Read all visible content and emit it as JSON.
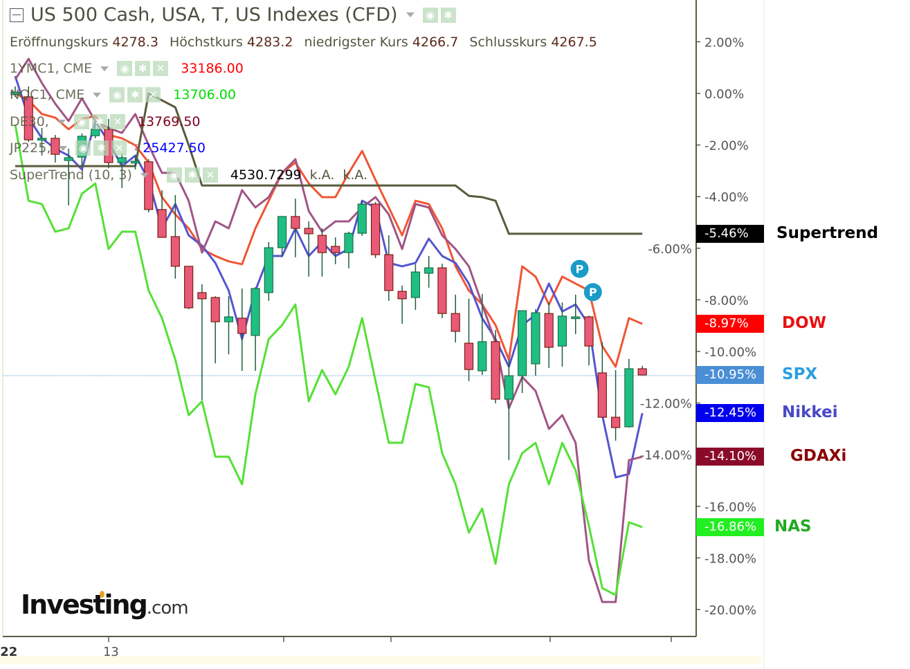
{
  "header": {
    "title": "US 500 Cash, USA, T, US Indexes (CFD)",
    "ohlc": [
      {
        "label": "Eröffnungskurs",
        "value": "4278.3"
      },
      {
        "label": "Höchstkurs",
        "value": "4283.2"
      },
      {
        "label": "niedrigster Kurs",
        "value": "4266.7"
      },
      {
        "label": "Schlusskurs",
        "value": "4267.5"
      }
    ]
  },
  "legend": [
    {
      "name": "1YMC1, CME",
      "value": "33186.00",
      "color": "#ff0000"
    },
    {
      "name": "NQC1, CME",
      "value": "13706.00",
      "color": "#00dd00"
    },
    {
      "name": "DE30,",
      "value": "13769.50",
      "color": "#800020"
    },
    {
      "name": "JP225,",
      "value": "25427.50",
      "color": "#0000ff"
    },
    {
      "name": "SuperTrend (10, 3)",
      "value": "4530.7299",
      "extra1": "k.A.",
      "extra2": "k.A.",
      "color": "#000000"
    }
  ],
  "icons": {
    "visibility": "eye-icon",
    "settings": "gear-icon",
    "remove": "close-icon",
    "alert": "alert-arrow-icon"
  },
  "logo": {
    "main": "Investing",
    "suffix": ".com"
  },
  "chart_data": {
    "type": "line",
    "title": "US 500 Cash, USA, T, US Indexes (CFD)",
    "xlabel": "",
    "ylabel": "",
    "ylim": [
      -21.5,
      3.5
    ],
    "y_ticks": [
      "2.00%",
      "0.00%",
      "-2.00%",
      "-4.00%",
      "-6.00%",
      "-8.00%",
      "-10.00%",
      "-12.00%",
      "-14.00%",
      "-16.00%",
      "-18.00%",
      "-20.00%"
    ],
    "y_tick_values": [
      2,
      0,
      -2,
      -4,
      -6,
      -8,
      -10,
      -12,
      -14,
      -16,
      -18,
      -20
    ],
    "x_tick_labels": [
      {
        "label": "22",
        "bar": -0.4
      },
      {
        "label": "13",
        "bar": 7
      }
    ],
    "grid": false,
    "candles": {
      "name": "SPX",
      "up_color": "#1fbf84",
      "down_color": "#e85a78",
      "ohlc": [
        [
          -0.05,
          0.27,
          -0.13,
          0.05
        ],
        [
          -0.13,
          0.27,
          -1.88,
          -1.8
        ],
        [
          -1.74,
          -1.34,
          -2.41,
          -1.74
        ],
        [
          -1.74,
          -1.61,
          -2.68,
          -2.36
        ],
        [
          -2.6,
          -2.14,
          -4.34,
          -2.49
        ],
        [
          -2.47,
          -1.55,
          -2.82,
          -1.66
        ],
        [
          -1.64,
          -1.1,
          -1.74,
          -1.39
        ],
        [
          -1.39,
          -0.99,
          -2.9,
          -2.68
        ],
        [
          -2.68,
          -2.33,
          -3.67,
          -2.49
        ],
        [
          -2.63,
          -2.41,
          -2.95,
          -2.63
        ],
        [
          -2.65,
          -2.55,
          -4.61,
          -4.5
        ],
        [
          -4.5,
          -3.75,
          -5.58,
          -5.58
        ],
        [
          -5.55,
          -3.94,
          -7.18,
          -6.7
        ],
        [
          -6.7,
          -6.7,
          -8.36,
          -8.31
        ],
        [
          -7.72,
          -7.4,
          -11.88,
          -7.96
        ],
        [
          -7.91,
          -7.86,
          -10.46,
          -8.85
        ],
        [
          -8.85,
          -7.86,
          -10.11,
          -8.66
        ],
        [
          -8.71,
          -7.56,
          -10.75,
          -9.3
        ],
        [
          -9.38,
          -7.51,
          -10.75,
          -7.56
        ],
        [
          -7.72,
          -5.76,
          -8.04,
          -5.98
        ],
        [
          -5.98,
          -4.77,
          -6.35,
          -4.77
        ],
        [
          -4.77,
          -4.08,
          -6.35,
          -5.23
        ],
        [
          -5.23,
          -4.96,
          -7.1,
          -5.44
        ],
        [
          -5.5,
          -5.23,
          -7.1,
          -6.17
        ],
        [
          -5.93,
          -5.58,
          -6.62,
          -6.17
        ],
        [
          -6.17,
          -5.36,
          -6.78,
          -5.42
        ],
        [
          -5.42,
          -4.16,
          -5.52,
          -4.29
        ],
        [
          -4.29,
          -4.21,
          -6.38,
          -6.25
        ],
        [
          -6.25,
          -5.5,
          -8.04,
          -7.64
        ],
        [
          -7.67,
          -7.45,
          -8.93,
          -7.96
        ],
        [
          -7.91,
          -6.62,
          -8.39,
          -6.92
        ],
        [
          -6.97,
          -6.3,
          -7.53,
          -6.76
        ],
        [
          -6.76,
          -6.6,
          -8.71,
          -8.53
        ],
        [
          -8.53,
          -7.8,
          -9.65,
          -9.22
        ],
        [
          -9.68,
          -7.96,
          -11.15,
          -10.7
        ],
        [
          -10.75,
          -7.77,
          -10.91,
          -9.62
        ],
        [
          -9.62,
          -9.17,
          -12.01,
          -11.85
        ],
        [
          -11.85,
          -10.32,
          -14.21,
          -10.94
        ],
        [
          -10.94,
          -8.42,
          -11.61,
          -8.42
        ],
        [
          -10.48,
          -8.36,
          -10.94,
          -8.5
        ],
        [
          -8.53,
          -8.1,
          -10.64,
          -9.84
        ],
        [
          -9.79,
          -8.1,
          -10.59,
          -8.63
        ],
        [
          -8.66,
          -7.8,
          -9.33,
          -8.66
        ],
        [
          -8.66,
          -8.61,
          -10.54,
          -9.79
        ],
        [
          -10.83,
          -9.65,
          -12.55,
          -12.55
        ],
        [
          -12.55,
          -10.72,
          -13.46,
          -12.95
        ],
        [
          -12.92,
          -10.29,
          -12.95,
          -10.67
        ],
        [
          -10.67,
          -10.56,
          -10.91,
          -10.91
        ]
      ],
      "last": "-10.95%",
      "label_color": "#2a9fe0",
      "badge_color": "#4a8fd6"
    },
    "series": [
      {
        "name": "DOW",
        "color": "#f05535",
        "badge_color": "#ff0000",
        "label_color": "#e81010",
        "last": "-8.97%",
        "values": [
          0,
          -0.27,
          -0.8,
          -0.94,
          -1.39,
          -0.99,
          -0.88,
          -1.61,
          -1.74,
          -2.01,
          -2.68,
          -4.02,
          -4.69,
          -5.23,
          -6.03,
          -6.3,
          -6.51,
          -6.62,
          -5.23,
          -4.16,
          -3.08,
          -2.68,
          -3.49,
          -4.02,
          -4.02,
          -3.08,
          -2.23,
          -3.35,
          -4.42,
          -5.5,
          -4.16,
          -4.29,
          -5.23,
          -6.7,
          -7.64,
          -8.18,
          -8.98,
          -10.32,
          -6.7,
          -7.1,
          -8.18,
          -7.1,
          -7.37,
          -7.64,
          -9.79,
          -10.59,
          -8.71,
          -8.93
        ]
      },
      {
        "name": "Nikkei",
        "color": "#5555d0",
        "badge_color": "#0000ee",
        "label_color": "#4848c8",
        "last": "-12.45%",
        "values": [
          0.67,
          -0.94,
          -1.74,
          -2.14,
          -2.41,
          -2.95,
          -1.07,
          -1.88,
          -2.82,
          -2.41,
          -3.35,
          -5.23,
          -4.29,
          -5.5,
          -5.9,
          -6.57,
          -7.64,
          -9.52,
          -7.64,
          -6.3,
          -6.3,
          -5.23,
          -6.3,
          -5.76,
          -6.3,
          -6.03,
          -4.16,
          -4.42,
          -6.57,
          -6.7,
          -6.57,
          -5.63,
          -6.3,
          -6.57,
          -7.37,
          -8.71,
          -9.52,
          -10.59,
          -8.98,
          -8.58,
          -7.37,
          -8.45,
          -8.18,
          -8.98,
          -12.47,
          -14.88,
          -14.75,
          -12.39
        ]
      },
      {
        "name": "GDAXi",
        "color": "#a05585",
        "badge_color": "#8b0a2a",
        "label_color": "#8b0000",
        "last": "-14.10%",
        "values": [
          0.54,
          1.34,
          0.4,
          -0.4,
          -1.07,
          -0.19,
          -1.07,
          -1.34,
          -1.53,
          -0.8,
          -2.01,
          -3.08,
          -3.08,
          -4.16,
          -6.17,
          -4.96,
          -5.23,
          -3.75,
          -4.42,
          -4.02,
          -3.08,
          -2.55,
          -4.56,
          -5.36,
          -4.96,
          -4.96,
          -4.42,
          -4.02,
          -4.69,
          -6.03,
          -4.29,
          -4.42,
          -5.5,
          -6.03,
          -6.7,
          -8.18,
          -9.65,
          -12.2,
          -10.99,
          -11.53,
          -13.0,
          -12.47,
          -13.54,
          -18.1,
          -19.71,
          -19.71,
          -14.21,
          -14.08
        ]
      },
      {
        "name": "NAS",
        "color": "#55e035",
        "badge_color": "#22ee22",
        "label_color": "#22aa22",
        "last": "-16.86%",
        "values": [
          -1.21,
          -4.16,
          -4.29,
          -5.36,
          -5.23,
          -3.89,
          -3.49,
          -6.03,
          -5.36,
          -5.36,
          -7.64,
          -8.71,
          -10.32,
          -12.47,
          -11.93,
          -14.08,
          -14.08,
          -15.15,
          -11.66,
          -9.52,
          -8.98,
          -8.18,
          -11.93,
          -10.72,
          -11.66,
          -10.59,
          -8.71,
          -11.13,
          -13.54,
          -13.54,
          -11.26,
          -11.39,
          -13.94,
          -15.15,
          -17.02,
          -16.09,
          -18.23,
          -15.15,
          -13.94,
          -13.54,
          -15.15,
          -13.54,
          -14.61,
          -16.76,
          -19.17,
          -19.44,
          -16.62,
          -16.81
        ]
      },
      {
        "name": "Supertrend",
        "color": "#5a5a3c",
        "badge_color": "#000000",
        "label_color": "#000000",
        "last": "-5.46%",
        "values": [
          -2.82,
          -2.82,
          -2.82,
          -2.82,
          -2.82,
          -2.82,
          -2.82,
          -2.82,
          -2.82,
          -2.82,
          0,
          -0.27,
          -0.54,
          -2.0,
          -3.57,
          -3.57,
          -3.57,
          -3.57,
          -3.57,
          -3.57,
          -3.57,
          -3.57,
          -3.57,
          -3.57,
          -3.57,
          -3.57,
          -3.57,
          -3.57,
          -3.57,
          -3.57,
          -3.57,
          -3.57,
          -3.57,
          -3.57,
          -3.97,
          -4.02,
          -4.16,
          -5.44,
          -5.44,
          -5.44,
          -5.44,
          -5.44,
          -5.44,
          -5.44,
          -5.44,
          -5.44,
          -5.44,
          -5.44
        ]
      }
    ],
    "markers": [
      {
        "label": "P",
        "bar": 42.3,
        "value": -6.8
      },
      {
        "label": "P",
        "bar": 43.3,
        "value": -7.7
      }
    ],
    "marker_color": "#1a9bc8"
  }
}
